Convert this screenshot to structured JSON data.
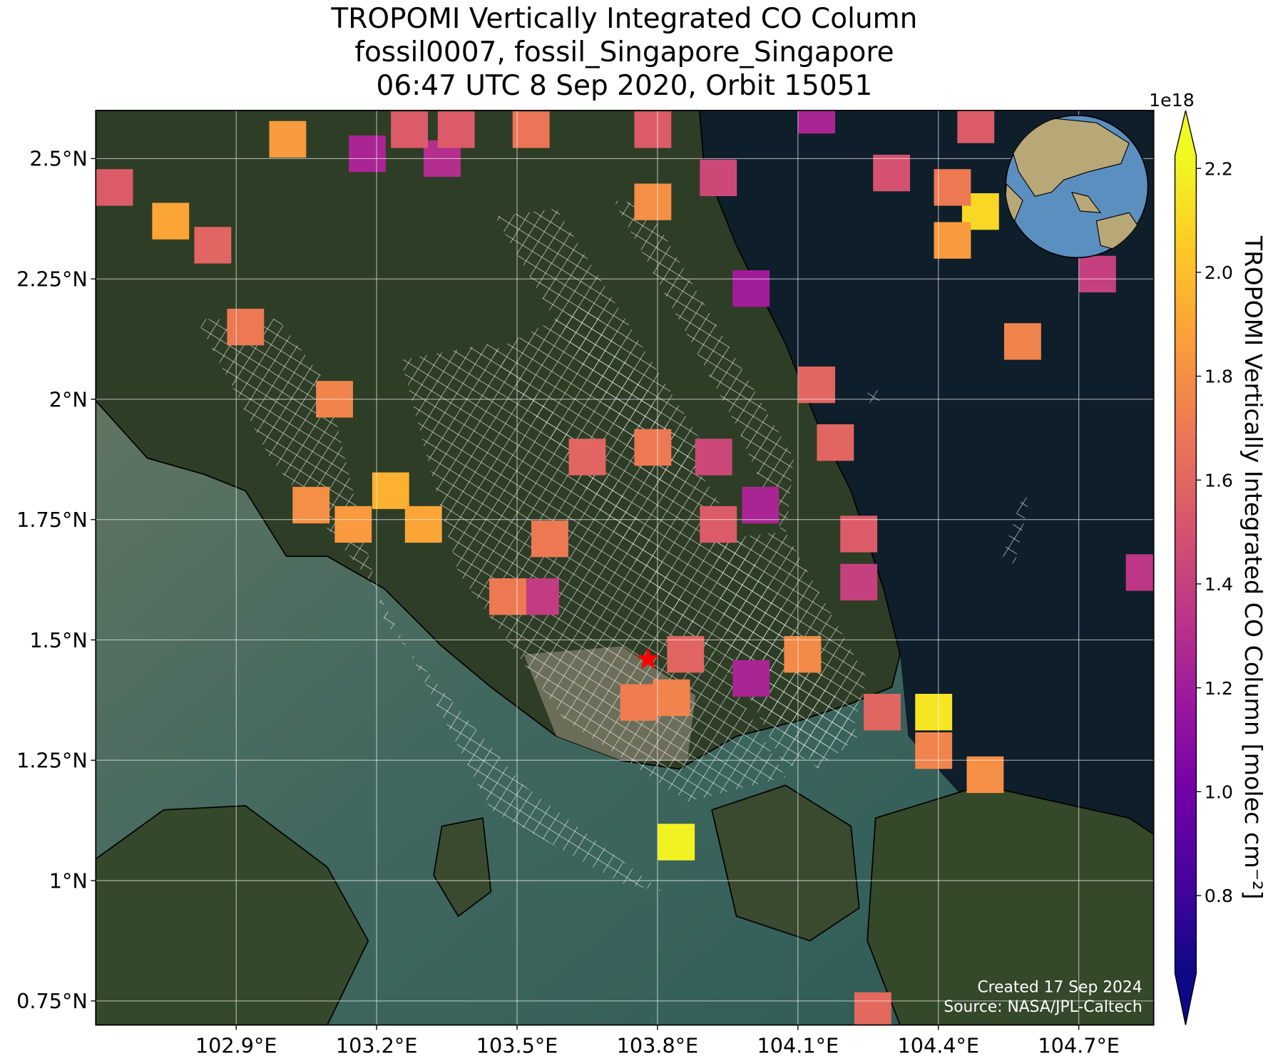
{
  "chart_data": {
    "type": "map",
    "title_lines": [
      "TROPOMI Vertically Integrated CO Column",
      "fossil0007, fossil_Singapore_Singapore",
      "06:47 UTC 8 Sep 2020, Orbit 15051"
    ],
    "xlim": [
      102.6,
      104.86
    ],
    "ylim": [
      0.7,
      2.6
    ],
    "xticks": [
      {
        "value": 102.9,
        "label": "102.9°E"
      },
      {
        "value": 103.2,
        "label": "103.2°E"
      },
      {
        "value": 103.5,
        "label": "103.5°E"
      },
      {
        "value": 103.8,
        "label": "103.8°E"
      },
      {
        "value": 104.1,
        "label": "104.1°E"
      },
      {
        "value": 104.4,
        "label": "104.4°E"
      },
      {
        "value": 104.7,
        "label": "104.7°E"
      }
    ],
    "yticks": [
      {
        "value": 0.75,
        "label": "0.75°N"
      },
      {
        "value": 1,
        "label": "1°N"
      },
      {
        "value": 1.25,
        "label": "1.25°N"
      },
      {
        "value": 1.5,
        "label": "1.5°N"
      },
      {
        "value": 1.75,
        "label": "1.75°N"
      },
      {
        "value": 2,
        "label": "2°N"
      },
      {
        "value": 2.25,
        "label": "2.25°N"
      },
      {
        "value": 2.5,
        "label": "2.5°N"
      }
    ],
    "grid": true,
    "colormap": [
      "#0d0887",
      "#46039f",
      "#7201a8",
      "#9c179e",
      "#bd3786",
      "#d8576b",
      "#ed7953",
      "#fb9f3a",
      "#fdca26",
      "#f0f921"
    ],
    "colorbar": {
      "label": "TROPOMI Vertically Integrated CO Column [molec cm⁻²]",
      "offset_label": "1e18",
      "lim": [
        0.65,
        2.225
      ],
      "ticks": [
        0.8,
        {
          "value": 1,
          "label": "1.0"
        },
        1.2,
        1.4,
        1.6,
        1.8,
        {
          "value": 2,
          "label": "2.0"
        },
        2.2
      ]
    },
    "site": {
      "lon": 103.78,
      "lat": 1.46,
      "color": "#ff0000"
    },
    "cells": [
      {
        "lon": 104.39,
        "lat": 1.35,
        "value": 2.15
      },
      {
        "lon": 104.39,
        "lat": 1.27,
        "value": 1.75
      },
      {
        "lon": 104.5,
        "lat": 1.22,
        "value": 1.8
      },
      {
        "lon": 103.84,
        "lat": 1.08,
        "value": 2.2
      },
      {
        "lon": 104.26,
        "lat": 0.73,
        "value": 1.62
      },
      {
        "lon": 104.58,
        "lat": 2.12,
        "value": 1.75
      },
      {
        "lon": 104.49,
        "lat": 2.39,
        "value": 2.1
      },
      {
        "lon": 104.43,
        "lat": 2.33,
        "value": 1.85
      },
      {
        "lon": 104.43,
        "lat": 2.44,
        "value": 1.7
      },
      {
        "lon": 104.3,
        "lat": 2.47,
        "value": 1.5
      },
      {
        "lon": 104.74,
        "lat": 2.26,
        "value": 1.4
      },
      {
        "lon": 104.84,
        "lat": 1.64,
        "value": 1.35
      },
      {
        "lon": 104.0,
        "lat": 2.23,
        "value": 1.2
      },
      {
        "lon": 104.02,
        "lat": 1.78,
        "value": 1.25
      },
      {
        "lon": 103.93,
        "lat": 1.74,
        "value": 1.55
      },
      {
        "lon": 103.55,
        "lat": 1.59,
        "value": 1.38
      },
      {
        "lon": 103.48,
        "lat": 1.59,
        "value": 1.7
      },
      {
        "lon": 103.57,
        "lat": 1.71,
        "value": 1.7
      },
      {
        "lon": 103.23,
        "lat": 1.81,
        "value": 1.95
      },
      {
        "lon": 103.3,
        "lat": 1.74,
        "value": 1.9
      },
      {
        "lon": 103.15,
        "lat": 1.74,
        "value": 1.85
      },
      {
        "lon": 103.06,
        "lat": 1.78,
        "value": 1.8
      },
      {
        "lon": 103.11,
        "lat": 2.0,
        "value": 1.75
      },
      {
        "lon": 103.18,
        "lat": 2.51,
        "value": 1.25
      },
      {
        "lon": 103.34,
        "lat": 2.5,
        "value": 1.3
      },
      {
        "lon": 103.01,
        "lat": 2.54,
        "value": 1.85
      },
      {
        "lon": 102.76,
        "lat": 2.37,
        "value": 1.9
      },
      {
        "lon": 102.85,
        "lat": 2.32,
        "value": 1.6
      },
      {
        "lon": 102.92,
        "lat": 2.15,
        "value": 1.7
      },
      {
        "lon": 102.64,
        "lat": 2.44,
        "value": 1.55
      },
      {
        "lon": 103.83,
        "lat": 1.38,
        "value": 1.75
      },
      {
        "lon": 103.76,
        "lat": 1.37,
        "value": 1.72
      },
      {
        "lon": 103.86,
        "lat": 1.47,
        "value": 1.6
      },
      {
        "lon": 104.0,
        "lat": 1.42,
        "value": 1.25
      },
      {
        "lon": 104.11,
        "lat": 1.47,
        "value": 1.78
      },
      {
        "lon": 104.14,
        "lat": 2.03,
        "value": 1.6
      },
      {
        "lon": 104.23,
        "lat": 1.72,
        "value": 1.55
      },
      {
        "lon": 104.23,
        "lat": 1.62,
        "value": 1.4
      },
      {
        "lon": 104.18,
        "lat": 1.91,
        "value": 1.6
      },
      {
        "lon": 103.65,
        "lat": 1.88,
        "value": 1.6
      },
      {
        "lon": 103.79,
        "lat": 1.9,
        "value": 1.7
      },
      {
        "lon": 103.92,
        "lat": 1.88,
        "value": 1.45
      },
      {
        "lon": 103.79,
        "lat": 2.41,
        "value": 1.8
      },
      {
        "lon": 103.93,
        "lat": 2.46,
        "value": 1.45
      },
      {
        "lon": 103.79,
        "lat": 2.56,
        "value": 1.55
      },
      {
        "lon": 103.53,
        "lat": 2.56,
        "value": 1.68
      },
      {
        "lon": 103.27,
        "lat": 2.56,
        "value": 1.55
      },
      {
        "lon": 103.37,
        "lat": 2.56,
        "value": 1.55
      },
      {
        "lon": 104.14,
        "lat": 2.59,
        "value": 1.25
      },
      {
        "lon": 104.48,
        "lat": 2.57,
        "value": 1.55
      },
      {
        "lon": 104.28,
        "lat": 1.35,
        "value": 1.6
      }
    ],
    "annotations": [
      "Created 17 Sep 2024",
      "Source: NASA/JPL-Caltech"
    ]
  }
}
